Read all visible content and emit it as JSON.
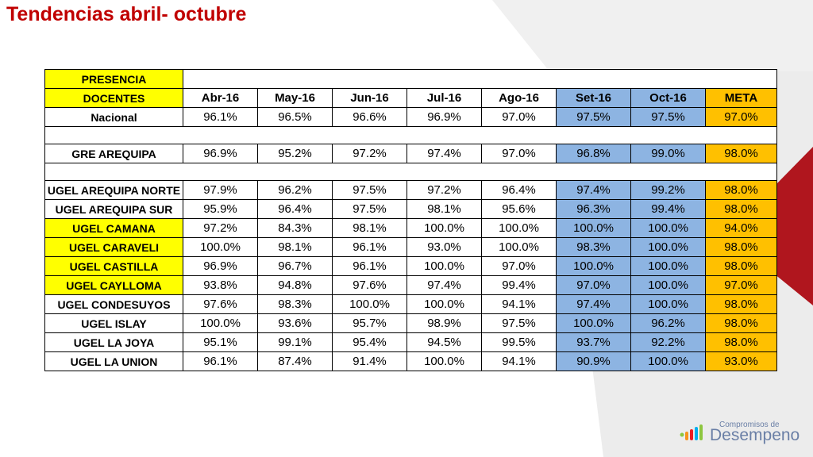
{
  "title": "Tendencias abril- octubre",
  "table": {
    "header1": "PRESENCIA",
    "header2": "DOCENTES",
    "months": [
      "Abr-16",
      "May-16",
      "Jun-16",
      "Jul-16",
      "Ago-16",
      "Set-16",
      "Oct-16"
    ],
    "meta_label": "META",
    "rows": [
      {
        "label": "Nacional",
        "values": [
          "96.1%",
          "96.5%",
          "96.6%",
          "96.9%",
          "97.0%",
          "97.5%",
          "97.5%"
        ],
        "meta": "97.0%",
        "highlight": false
      },
      {
        "label": "GRE AREQUIPA",
        "values": [
          "96.9%",
          "95.2%",
          "97.2%",
          "97.4%",
          "97.0%",
          "96.8%",
          "99.0%"
        ],
        "meta": "98.0%",
        "highlight": false
      },
      {
        "label": "UGEL AREQUIPA NORTE",
        "values": [
          "97.9%",
          "96.2%",
          "97.5%",
          "97.2%",
          "96.4%",
          "97.4%",
          "99.2%"
        ],
        "meta": "98.0%",
        "highlight": false
      },
      {
        "label": "UGEL AREQUIPA SUR",
        "values": [
          "95.9%",
          "96.4%",
          "97.5%",
          "98.1%",
          "95.6%",
          "96.3%",
          "99.4%"
        ],
        "meta": "98.0%",
        "highlight": false
      },
      {
        "label": "UGEL CAMANA",
        "values": [
          "97.2%",
          "84.3%",
          "98.1%",
          "100.0%",
          "100.0%",
          "100.0%",
          "100.0%"
        ],
        "meta": "94.0%",
        "highlight": true
      },
      {
        "label": "UGEL CARAVELI",
        "values": [
          "100.0%",
          "98.1%",
          "96.1%",
          "93.0%",
          "100.0%",
          "98.3%",
          "100.0%"
        ],
        "meta": "98.0%",
        "highlight": true
      },
      {
        "label": "UGEL CASTILLA",
        "values": [
          "96.9%",
          "96.7%",
          "96.1%",
          "100.0%",
          "97.0%",
          "100.0%",
          "100.0%"
        ],
        "meta": "98.0%",
        "highlight": true
      },
      {
        "label": "UGEL CAYLLOMA",
        "values": [
          "93.8%",
          "94.8%",
          "97.6%",
          "97.4%",
          "99.4%",
          "97.0%",
          "100.0%"
        ],
        "meta": "97.0%",
        "highlight": true
      },
      {
        "label": "UGEL CONDESUYOS",
        "values": [
          "97.6%",
          "98.3%",
          "100.0%",
          "100.0%",
          "94.1%",
          "97.4%",
          "100.0%"
        ],
        "meta": "98.0%",
        "highlight": false
      },
      {
        "label": "UGEL ISLAY",
        "values": [
          "100.0%",
          "93.6%",
          "95.7%",
          "98.9%",
          "97.5%",
          "100.0%",
          "96.2%"
        ],
        "meta": "98.0%",
        "highlight": false
      },
      {
        "label": "UGEL LA JOYA",
        "values": [
          "95.1%",
          "99.1%",
          "95.4%",
          "94.5%",
          "99.5%",
          "93.7%",
          "92.2%"
        ],
        "meta": "98.0%",
        "highlight": false
      },
      {
        "label": "UGEL LA UNION",
        "values": [
          "96.1%",
          "87.4%",
          "91.4%",
          "100.0%",
          "94.1%",
          "90.9%",
          "100.0%"
        ],
        "meta": "93.0%",
        "highlight": false
      }
    ]
  },
  "logo": {
    "small": "Compromisos de",
    "big": "Desempeno"
  },
  "colors": {
    "title": "#c00000",
    "yellow": "#ffff00",
    "blue": "#8db4e2",
    "orange": "#ffc000",
    "accent_red": "#b0161e"
  }
}
